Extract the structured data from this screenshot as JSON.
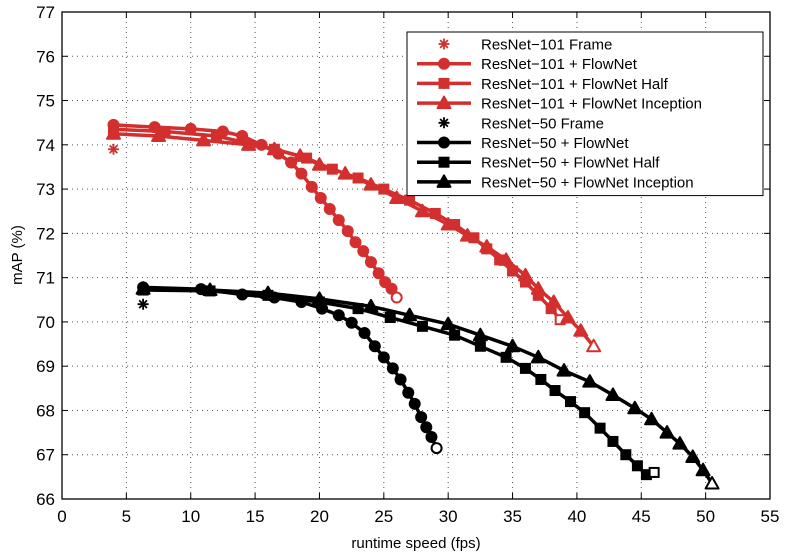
{
  "chart_data": {
    "type": "line",
    "title": "",
    "xlabel": "runtime speed (fps)",
    "ylabel": "mAP (%)",
    "xlim": [
      0,
      55
    ],
    "ylim": [
      66,
      77
    ],
    "xticks": [
      0,
      5,
      10,
      15,
      20,
      25,
      30,
      35,
      40,
      45,
      50,
      55
    ],
    "yticks": [
      66,
      67,
      68,
      69,
      70,
      71,
      72,
      73,
      74,
      75,
      76,
      77
    ],
    "grid": true,
    "legend_position": "top-right",
    "colors": {
      "red": "#d32f2f",
      "black": "#000000"
    },
    "series": [
      {
        "name": "ResNet−101 Frame",
        "color": "#d32f2f",
        "marker": "asterisk",
        "line": false,
        "points": [
          [
            4.0,
            73.9
          ]
        ]
      },
      {
        "name": "ResNet−101 + FlowNet",
        "color": "#d32f2f",
        "marker": "circle",
        "line": true,
        "points": [
          [
            4.0,
            74.45
          ],
          [
            7.2,
            74.4
          ],
          [
            10.0,
            74.36
          ],
          [
            12.5,
            74.3
          ],
          [
            14.0,
            74.2
          ],
          [
            15.5,
            74.0
          ],
          [
            16.8,
            73.8
          ],
          [
            17.8,
            73.6
          ],
          [
            18.6,
            73.35
          ],
          [
            19.4,
            73.05
          ],
          [
            20.1,
            72.8
          ],
          [
            20.8,
            72.55
          ],
          [
            21.5,
            72.3
          ],
          [
            22.2,
            72.05
          ],
          [
            22.8,
            71.8
          ],
          [
            23.4,
            71.6
          ],
          [
            24.0,
            71.35
          ],
          [
            24.6,
            71.1
          ],
          [
            25.1,
            70.9
          ],
          [
            25.6,
            70.75
          ],
          [
            26.0,
            70.55
          ]
        ]
      },
      {
        "name": "ResNet−101 + FlowNet Half",
        "color": "#d32f2f",
        "marker": "square",
        "line": true,
        "points": [
          [
            4.0,
            74.35
          ],
          [
            8.0,
            74.3
          ],
          [
            12.0,
            74.2
          ],
          [
            16.5,
            73.9
          ],
          [
            19.0,
            73.7
          ],
          [
            21.0,
            73.45
          ],
          [
            23.0,
            73.25
          ],
          [
            25.0,
            73.0
          ],
          [
            27.0,
            72.75
          ],
          [
            29.0,
            72.45
          ],
          [
            30.5,
            72.2
          ],
          [
            32.0,
            71.9
          ],
          [
            33.0,
            71.65
          ],
          [
            34.0,
            71.4
          ],
          [
            35.0,
            71.15
          ],
          [
            36.0,
            70.9
          ],
          [
            37.0,
            70.6
          ],
          [
            38.0,
            70.3
          ],
          [
            38.7,
            70.05
          ]
        ]
      },
      {
        "name": "ResNet−101 + FlowNet Inception",
        "color": "#d32f2f",
        "marker": "triangle",
        "line": true,
        "points": [
          [
            4.0,
            74.25
          ],
          [
            7.5,
            74.2
          ],
          [
            11.0,
            74.1
          ],
          [
            14.5,
            74.0
          ],
          [
            16.5,
            73.9
          ],
          [
            18.5,
            73.75
          ],
          [
            20.0,
            73.55
          ],
          [
            22.0,
            73.35
          ],
          [
            24.0,
            73.1
          ],
          [
            26.0,
            72.8
          ],
          [
            28.0,
            72.5
          ],
          [
            30.0,
            72.2
          ],
          [
            31.5,
            71.95
          ],
          [
            33.0,
            71.7
          ],
          [
            34.5,
            71.4
          ],
          [
            36.0,
            71.05
          ],
          [
            37.0,
            70.75
          ],
          [
            38.2,
            70.45
          ],
          [
            39.3,
            70.1
          ],
          [
            40.3,
            69.8
          ],
          [
            41.3,
            69.45
          ]
        ]
      },
      {
        "name": "ResNet−50 Frame",
        "color": "#000000",
        "marker": "asterisk",
        "line": false,
        "points": [
          [
            6.3,
            70.4
          ]
        ]
      },
      {
        "name": "ResNet−50 + FlowNet",
        "color": "#000000",
        "marker": "circle",
        "line": true,
        "points": [
          [
            6.3,
            70.78
          ],
          [
            10.8,
            70.74
          ],
          [
            14.0,
            70.62
          ],
          [
            16.5,
            70.55
          ],
          [
            18.6,
            70.45
          ],
          [
            20.2,
            70.3
          ],
          [
            21.5,
            70.15
          ],
          [
            22.5,
            69.98
          ],
          [
            23.5,
            69.75
          ],
          [
            24.3,
            69.45
          ],
          [
            25.0,
            69.2
          ],
          [
            25.7,
            68.95
          ],
          [
            26.3,
            68.7
          ],
          [
            26.9,
            68.4
          ],
          [
            27.4,
            68.15
          ],
          [
            27.9,
            67.85
          ],
          [
            28.3,
            67.62
          ],
          [
            28.7,
            67.4
          ],
          [
            29.1,
            67.15
          ]
        ]
      },
      {
        "name": "ResNet−50 + FlowNet Half",
        "color": "#000000",
        "marker": "square",
        "line": true,
        "points": [
          [
            6.3,
            70.72
          ],
          [
            11.5,
            70.7
          ],
          [
            16.0,
            70.6
          ],
          [
            20.0,
            70.45
          ],
          [
            23.0,
            70.3
          ],
          [
            25.5,
            70.1
          ],
          [
            28.0,
            69.9
          ],
          [
            30.5,
            69.7
          ],
          [
            32.5,
            69.45
          ],
          [
            34.5,
            69.2
          ],
          [
            36.0,
            68.95
          ],
          [
            37.2,
            68.7
          ],
          [
            38.3,
            68.45
          ],
          [
            39.5,
            68.2
          ],
          [
            40.6,
            67.95
          ],
          [
            41.8,
            67.6
          ],
          [
            42.8,
            67.3
          ],
          [
            43.8,
            67.0
          ],
          [
            44.7,
            66.75
          ],
          [
            45.4,
            66.55
          ],
          [
            46.0,
            66.6
          ]
        ]
      },
      {
        "name": "ResNet−50 + FlowNet Inception",
        "color": "#000000",
        "marker": "triangle",
        "line": true,
        "points": [
          [
            6.3,
            70.75
          ],
          [
            11.5,
            70.72
          ],
          [
            16.0,
            70.65
          ],
          [
            20.0,
            70.52
          ],
          [
            24.0,
            70.35
          ],
          [
            27.0,
            70.15
          ],
          [
            30.0,
            69.95
          ],
          [
            32.5,
            69.7
          ],
          [
            35.0,
            69.45
          ],
          [
            37.0,
            69.2
          ],
          [
            39.0,
            68.9
          ],
          [
            41.0,
            68.65
          ],
          [
            42.8,
            68.35
          ],
          [
            44.5,
            68.05
          ],
          [
            45.8,
            67.8
          ],
          [
            47.0,
            67.5
          ],
          [
            48.0,
            67.25
          ],
          [
            49.0,
            66.95
          ],
          [
            49.8,
            66.65
          ],
          [
            50.5,
            66.35
          ]
        ]
      }
    ]
  }
}
